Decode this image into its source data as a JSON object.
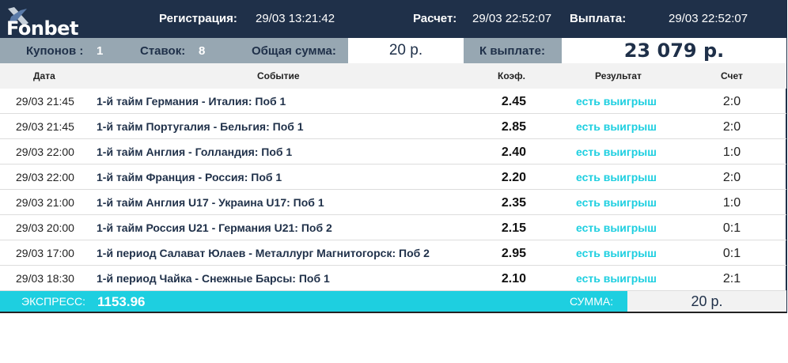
{
  "header": {
    "logo": "Fonbet",
    "reg_label": "Регистрация:",
    "reg_value": "29/03  13:21:42",
    "calc_label": "Расчет:",
    "calc_value": "29/03  22:52:07",
    "payout_label": "Выплата:",
    "payout_value": "29/03 22:52:07"
  },
  "summary": {
    "coupons_label": "Купонов :",
    "coupons": "1",
    "bets_label": "Ставок:",
    "bets": "8",
    "total_label": "Общая сумма:",
    "total": "20 р.",
    "payout_label": "К выплате:",
    "payout": "23 079 р."
  },
  "columns": {
    "date": "Дата",
    "event": "Событие",
    "coef": "Коэф.",
    "result": "Результат",
    "score": "Счет"
  },
  "rows": [
    {
      "date": "29/03 21:45",
      "event": "1-й тайм Германия - Италия: Поб 1",
      "coef": "2.45",
      "result": "есть выигрыш",
      "score": "2:0"
    },
    {
      "date": "29/03 21:45",
      "event": "1-й тайм Португалия - Бельгия: Поб 1",
      "coef": "2.85",
      "result": "есть выигрыш",
      "score": "2:0"
    },
    {
      "date": "29/03 22:00",
      "event": "1-й тайм Англия - Голландия: Поб 1",
      "coef": "2.40",
      "result": "есть выигрыш",
      "score": "1:0"
    },
    {
      "date": "29/03 22:00",
      "event": "1-й тайм Франция - Россия: Поб 1",
      "coef": "2.20",
      "result": "есть выигрыш",
      "score": "2:0"
    },
    {
      "date": "29/03 21:00",
      "event": "1-й тайм Англия U17 - Украина U17: Поб 1",
      "coef": "2.35",
      "result": "есть выигрыш",
      "score": "1:0"
    },
    {
      "date": "29/03 20:00",
      "event": "1-й тайм Россия U21 - Германия U21: Поб 2",
      "coef": "2.15",
      "result": "есть выигрыш",
      "score": "0:1"
    },
    {
      "date": "29/03 17:00",
      "event": "1-й период Салават Юлаев - Металлург Магнитогорск: Поб 2",
      "coef": "2.95",
      "result": "есть выигрыш",
      "score": "0:1"
    },
    {
      "date": "29/03 18:30",
      "event": "1-й период Чайка - Снежные Барсы: Поб 1",
      "coef": "2.10",
      "result": "есть выигрыш",
      "score": "2:1"
    }
  ],
  "footer": {
    "express_label": "ЭКСПРЕСС:",
    "express_value": "1153.96",
    "sum_label": "СУММА:",
    "sum_value": "20 р."
  },
  "colors": {
    "header_bg": "#1f3049",
    "summary_bg": "#97a7b2",
    "accent": "#1ecfe0"
  }
}
